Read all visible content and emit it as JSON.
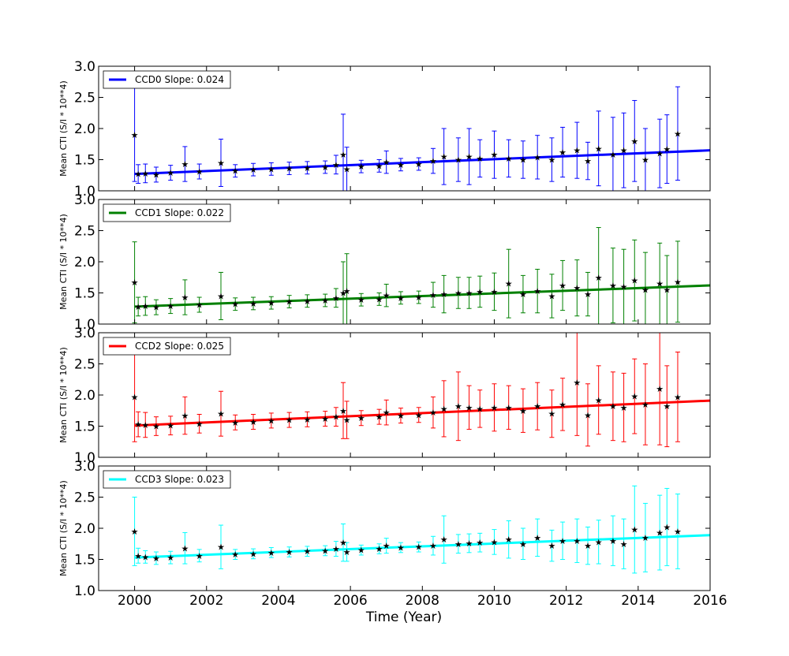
{
  "chart_data": {
    "type": "scatter",
    "xlabel": "Time (Year)",
    "ylabel": "Mean CTI (S/I * 10**4)",
    "xlim": [
      1999,
      2016
    ],
    "ylim": [
      1.0,
      3.0
    ],
    "xticks": [
      "2000",
      "2002",
      "2004",
      "2006",
      "2008",
      "2010",
      "2012",
      "2014",
      "2016"
    ],
    "yticks": [
      "1.0",
      "1.5",
      "2.0",
      "2.5",
      "3.0"
    ],
    "legend_position": "top-left",
    "panels": [
      {
        "name": "CCD0",
        "legend": "CCD0 Slope: 0.024",
        "color": "#0000ff",
        "fit": {
          "x": [
            2000.0,
            2016.0
          ],
          "y": [
            1.27,
            1.65
          ]
        },
        "points": [
          [
            2000.0,
            1.9,
            0.75
          ],
          [
            2000.1,
            1.27,
            0.15
          ],
          [
            2000.3,
            1.28,
            0.15
          ],
          [
            2000.6,
            1.26,
            0.12
          ],
          [
            2001.0,
            1.29,
            0.12
          ],
          [
            2001.4,
            1.43,
            0.28
          ],
          [
            2001.8,
            1.31,
            0.12
          ],
          [
            2002.4,
            1.45,
            0.38
          ],
          [
            2002.8,
            1.32,
            0.1
          ],
          [
            2003.3,
            1.34,
            0.1
          ],
          [
            2003.8,
            1.35,
            0.1
          ],
          [
            2004.3,
            1.36,
            0.1
          ],
          [
            2004.8,
            1.37,
            0.1
          ],
          [
            2005.3,
            1.38,
            0.1
          ],
          [
            2005.6,
            1.42,
            0.15
          ],
          [
            2005.8,
            1.58,
            0.65
          ],
          [
            2005.9,
            1.35,
            0.35
          ],
          [
            2006.3,
            1.39,
            0.1
          ],
          [
            2006.8,
            1.4,
            0.1
          ],
          [
            2007.0,
            1.46,
            0.18
          ],
          [
            2007.4,
            1.42,
            0.1
          ],
          [
            2007.9,
            1.43,
            0.1
          ],
          [
            2008.3,
            1.48,
            0.2
          ],
          [
            2008.6,
            1.55,
            0.45
          ],
          [
            2009.0,
            1.5,
            0.35
          ],
          [
            2009.3,
            1.55,
            0.45
          ],
          [
            2009.6,
            1.52,
            0.3
          ],
          [
            2010.0,
            1.58,
            0.38
          ],
          [
            2010.4,
            1.52,
            0.3
          ],
          [
            2010.8,
            1.5,
            0.3
          ],
          [
            2011.2,
            1.54,
            0.35
          ],
          [
            2011.6,
            1.5,
            0.35
          ],
          [
            2011.9,
            1.62,
            0.4
          ],
          [
            2012.3,
            1.65,
            0.45
          ],
          [
            2012.6,
            1.48,
            0.3
          ],
          [
            2012.9,
            1.68,
            0.6
          ],
          [
            2013.3,
            1.58,
            0.6
          ],
          [
            2013.6,
            1.65,
            0.6
          ],
          [
            2013.9,
            1.8,
            0.65
          ],
          [
            2014.2,
            1.5,
            0.5
          ],
          [
            2014.6,
            1.6,
            0.55
          ],
          [
            2014.8,
            1.67,
            0.55
          ],
          [
            2015.1,
            1.92,
            0.75
          ]
        ]
      },
      {
        "name": "CCD1",
        "legend": "CCD1 Slope: 0.022",
        "color": "#008000",
        "fit": {
          "x": [
            2000.0,
            2016.0
          ],
          "y": [
            1.28,
            1.62
          ]
        },
        "points": [
          [
            2000.0,
            1.67,
            0.65
          ],
          [
            2000.1,
            1.28,
            0.15
          ],
          [
            2000.3,
            1.29,
            0.15
          ],
          [
            2000.6,
            1.27,
            0.12
          ],
          [
            2001.0,
            1.29,
            0.12
          ],
          [
            2001.4,
            1.43,
            0.28
          ],
          [
            2001.8,
            1.31,
            0.12
          ],
          [
            2002.4,
            1.45,
            0.38
          ],
          [
            2002.8,
            1.32,
            0.1
          ],
          [
            2003.3,
            1.33,
            0.1
          ],
          [
            2003.8,
            1.34,
            0.1
          ],
          [
            2004.3,
            1.36,
            0.1
          ],
          [
            2004.8,
            1.37,
            0.1
          ],
          [
            2005.3,
            1.38,
            0.1
          ],
          [
            2005.6,
            1.42,
            0.15
          ],
          [
            2005.8,
            1.5,
            0.5
          ],
          [
            2005.9,
            1.53,
            0.6
          ],
          [
            2006.3,
            1.39,
            0.1
          ],
          [
            2006.8,
            1.4,
            0.1
          ],
          [
            2007.0,
            1.46,
            0.18
          ],
          [
            2007.4,
            1.42,
            0.1
          ],
          [
            2007.9,
            1.43,
            0.1
          ],
          [
            2008.3,
            1.47,
            0.2
          ],
          [
            2008.6,
            1.48,
            0.3
          ],
          [
            2009.0,
            1.5,
            0.25
          ],
          [
            2009.3,
            1.5,
            0.25
          ],
          [
            2009.6,
            1.52,
            0.25
          ],
          [
            2010.0,
            1.52,
            0.3
          ],
          [
            2010.4,
            1.65,
            0.55
          ],
          [
            2010.8,
            1.48,
            0.3
          ],
          [
            2011.2,
            1.53,
            0.35
          ],
          [
            2011.6,
            1.45,
            0.35
          ],
          [
            2011.9,
            1.62,
            0.4
          ],
          [
            2012.3,
            1.58,
            0.45
          ],
          [
            2012.6,
            1.48,
            0.35
          ],
          [
            2012.9,
            1.75,
            0.8
          ],
          [
            2013.3,
            1.62,
            0.6
          ],
          [
            2013.6,
            1.6,
            0.6
          ],
          [
            2013.9,
            1.7,
            0.65
          ],
          [
            2014.2,
            1.55,
            0.6
          ],
          [
            2014.6,
            1.65,
            0.65
          ],
          [
            2014.8,
            1.55,
            0.55
          ],
          [
            2015.1,
            1.68,
            0.65
          ]
        ]
      },
      {
        "name": "CCD2",
        "legend": "CCD2 Slope: 0.025",
        "color": "#ff0000",
        "fit": {
          "x": [
            2000.0,
            2016.0
          ],
          "y": [
            1.51,
            1.91
          ]
        },
        "points": [
          [
            2000.0,
            1.97,
            0.72
          ],
          [
            2000.1,
            1.53,
            0.2
          ],
          [
            2000.3,
            1.52,
            0.2
          ],
          [
            2000.6,
            1.5,
            0.15
          ],
          [
            2001.0,
            1.51,
            0.15
          ],
          [
            2001.4,
            1.67,
            0.3
          ],
          [
            2001.8,
            1.54,
            0.15
          ],
          [
            2002.4,
            1.7,
            0.36
          ],
          [
            2002.8,
            1.56,
            0.12
          ],
          [
            2003.3,
            1.57,
            0.12
          ],
          [
            2003.8,
            1.59,
            0.12
          ],
          [
            2004.3,
            1.6,
            0.12
          ],
          [
            2004.8,
            1.61,
            0.12
          ],
          [
            2005.3,
            1.62,
            0.12
          ],
          [
            2005.6,
            1.65,
            0.15
          ],
          [
            2005.8,
            1.75,
            0.45
          ],
          [
            2005.9,
            1.6,
            0.3
          ],
          [
            2006.3,
            1.63,
            0.12
          ],
          [
            2006.8,
            1.65,
            0.12
          ],
          [
            2007.0,
            1.72,
            0.2
          ],
          [
            2007.4,
            1.67,
            0.12
          ],
          [
            2007.9,
            1.68,
            0.12
          ],
          [
            2008.3,
            1.72,
            0.25
          ],
          [
            2008.6,
            1.78,
            0.45
          ],
          [
            2009.0,
            1.82,
            0.55
          ],
          [
            2009.3,
            1.8,
            0.35
          ],
          [
            2009.6,
            1.78,
            0.3
          ],
          [
            2010.0,
            1.8,
            0.38
          ],
          [
            2010.4,
            1.8,
            0.35
          ],
          [
            2010.8,
            1.75,
            0.35
          ],
          [
            2011.2,
            1.82,
            0.38
          ],
          [
            2011.6,
            1.7,
            0.38
          ],
          [
            2011.9,
            1.85,
            0.42
          ],
          [
            2012.3,
            2.2,
            0.85
          ],
          [
            2012.6,
            1.68,
            0.5
          ],
          [
            2012.9,
            1.92,
            0.55
          ],
          [
            2013.3,
            1.82,
            0.55
          ],
          [
            2013.6,
            1.8,
            0.55
          ],
          [
            2013.9,
            1.98,
            0.6
          ],
          [
            2014.2,
            1.85,
            0.65
          ],
          [
            2014.6,
            2.1,
            0.9
          ],
          [
            2014.8,
            1.82,
            0.65
          ],
          [
            2015.1,
            1.97,
            0.72
          ]
        ]
      },
      {
        "name": "CCD3",
        "legend": "CCD3 Slope: 0.023",
        "color": "#00ffff",
        "fit": {
          "x": [
            2000.0,
            2016.0
          ],
          "y": [
            1.53,
            1.89
          ]
        },
        "points": [
          [
            2000.0,
            1.95,
            0.55
          ],
          [
            2000.1,
            1.56,
            0.12
          ],
          [
            2000.3,
            1.54,
            0.1
          ],
          [
            2000.6,
            1.52,
            0.1
          ],
          [
            2001.0,
            1.53,
            0.1
          ],
          [
            2001.4,
            1.68,
            0.25
          ],
          [
            2001.8,
            1.56,
            0.1
          ],
          [
            2002.4,
            1.7,
            0.35
          ],
          [
            2002.8,
            1.58,
            0.08
          ],
          [
            2003.3,
            1.59,
            0.08
          ],
          [
            2003.8,
            1.61,
            0.08
          ],
          [
            2004.3,
            1.62,
            0.08
          ],
          [
            2004.8,
            1.63,
            0.08
          ],
          [
            2005.3,
            1.64,
            0.08
          ],
          [
            2005.6,
            1.67,
            0.12
          ],
          [
            2005.8,
            1.77,
            0.3
          ],
          [
            2005.9,
            1.62,
            0.15
          ],
          [
            2006.3,
            1.65,
            0.08
          ],
          [
            2006.8,
            1.67,
            0.08
          ],
          [
            2007.0,
            1.72,
            0.12
          ],
          [
            2007.4,
            1.69,
            0.08
          ],
          [
            2007.9,
            1.7,
            0.08
          ],
          [
            2008.3,
            1.72,
            0.15
          ],
          [
            2008.6,
            1.82,
            0.38
          ],
          [
            2009.0,
            1.75,
            0.15
          ],
          [
            2009.3,
            1.76,
            0.15
          ],
          [
            2009.6,
            1.77,
            0.15
          ],
          [
            2010.0,
            1.78,
            0.2
          ],
          [
            2010.4,
            1.82,
            0.3
          ],
          [
            2010.8,
            1.75,
            0.25
          ],
          [
            2011.2,
            1.85,
            0.3
          ],
          [
            2011.6,
            1.72,
            0.25
          ],
          [
            2011.9,
            1.8,
            0.3
          ],
          [
            2012.3,
            1.8,
            0.35
          ],
          [
            2012.6,
            1.72,
            0.3
          ],
          [
            2012.9,
            1.78,
            0.35
          ],
          [
            2013.3,
            1.8,
            0.4
          ],
          [
            2013.6,
            1.75,
            0.4
          ],
          [
            2013.9,
            1.98,
            0.7
          ],
          [
            2014.2,
            1.85,
            0.55
          ],
          [
            2014.6,
            1.93,
            0.6
          ],
          [
            2014.8,
            2.02,
            0.62
          ],
          [
            2015.1,
            1.95,
            0.6
          ]
        ]
      }
    ]
  }
}
